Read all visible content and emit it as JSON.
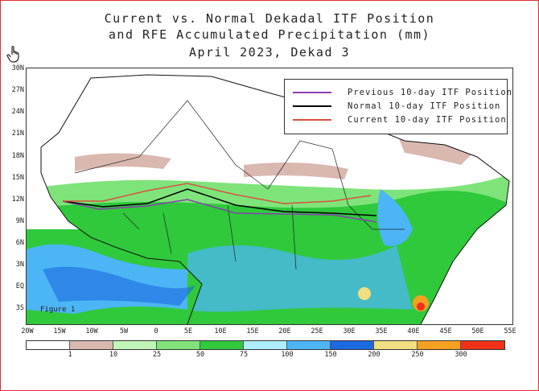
{
  "title": {
    "line1": "Current vs. Normal Dekadal ITF Position",
    "line2": "and RFE Accumulated Precipitation (mm)",
    "line3": "April 2023, Dekad 3"
  },
  "legend": {
    "previous": {
      "label": "Previous 10-day ITF Position",
      "color": "#8a3fb0"
    },
    "normal": {
      "label": "Normal 10-day ITF Position",
      "color": "#000000"
    },
    "current": {
      "label": "Current 10-day ITF Position",
      "color": "#d9503f"
    }
  },
  "y_axis": [
    "30N",
    "27N",
    "24N",
    "21N",
    "18N",
    "15N",
    "12N",
    "9N",
    "6N",
    "3N",
    "EQ",
    "3S"
  ],
  "x_axis": [
    "20W",
    "15W",
    "10W",
    "5W",
    "0",
    "5E",
    "10E",
    "15E",
    "20E",
    "25E",
    "30E",
    "35E",
    "40E",
    "45E",
    "50E",
    "55E"
  ],
  "figure_label": "Figure 1",
  "colorbar": {
    "colors": [
      "#ffffff",
      "#d9b8b0",
      "#bff5b8",
      "#7ee47a",
      "#2fc93b",
      "#aeeefe",
      "#4cb5f5",
      "#1c69e0",
      "#f0de80",
      "#f5a020",
      "#f03018"
    ],
    "labels": [
      "1",
      "10",
      "25",
      "50",
      "75",
      "100",
      "150",
      "200",
      "250",
      "300"
    ]
  },
  "map_icon": "hand-pointer-icon"
}
